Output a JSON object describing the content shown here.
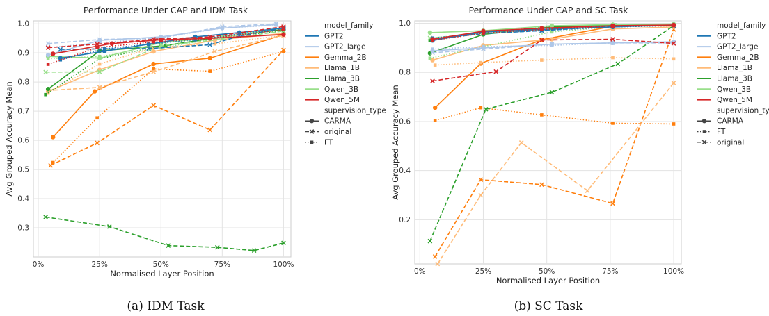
{
  "chart_data": [
    {
      "type": "line",
      "title": "Performance Under CAP and IDM Task",
      "xlabel": "Normalised Layer Position",
      "ylabel": "Avg Grouped Accuracy Mean",
      "xlim": [
        0,
        100
      ],
      "ylim": [
        0.2,
        1.0
      ],
      "x_ticks": [
        "0%",
        "25%",
        "50%",
        "75%",
        "100%"
      ],
      "y_ticks": [
        "0.3",
        "0.4",
        "0.5",
        "0.6",
        "0.7",
        "0.8",
        "0.9",
        "1.0"
      ],
      "caption": "(a)  IDM Task",
      "legend": {
        "hue_title": "model_family",
        "models": [
          "GPT2",
          "GPT2_large",
          "Gemma_2B",
          "Llama_1B",
          "Llama_3B",
          "Qwen_3B",
          "Qwen_5M"
        ],
        "style_title": "supervision_type",
        "styles": [
          "CARMA",
          "original",
          "FT"
        ]
      },
      "series": [
        {
          "model": "Gemma_2B",
          "style": "CARMA",
          "x": [
            6,
            23,
            47,
            70,
            100
          ],
          "y": [
            0.611,
            0.768,
            0.862,
            0.882,
            0.963
          ]
        },
        {
          "model": "Gemma_2B",
          "style": "original",
          "x": [
            5,
            24,
            47,
            70,
            100
          ],
          "y": [
            0.514,
            0.591,
            0.72,
            0.636,
            0.91
          ]
        },
        {
          "model": "Gemma_2B",
          "style": "FT",
          "x": [
            6,
            24,
            47,
            70,
            100
          ],
          "y": [
            0.524,
            0.677,
            0.845,
            0.837,
            0.905
          ]
        },
        {
          "model": "Llama_1B",
          "style": "CARMA",
          "x": [
            4,
            25,
            47,
            72,
            100
          ],
          "y": [
            0.768,
            0.842,
            0.905,
            0.944,
            0.967
          ]
        },
        {
          "model": "Llama_1B",
          "style": "original",
          "x": [
            4,
            25,
            47,
            72,
            100
          ],
          "y": [
            0.771,
            0.782,
            0.835,
            0.905,
            0.96
          ]
        },
        {
          "model": "Llama_1B",
          "style": "FT",
          "x": [
            4,
            25,
            47,
            72,
            100
          ],
          "y": [
            0.762,
            0.862,
            0.918,
            0.931,
            0.96
          ]
        },
        {
          "model": "Llama_3B",
          "style": "CARMA",
          "x": [
            4,
            25,
            52,
            75,
            100
          ],
          "y": [
            0.776,
            0.907,
            0.925,
            0.956,
            0.98
          ]
        },
        {
          "model": "Llama_3B",
          "style": "original",
          "x": [
            3,
            29,
            53,
            73,
            88,
            100
          ],
          "y": [
            0.337,
            0.304,
            0.239,
            0.233,
            0.222,
            0.248
          ]
        },
        {
          "model": "Llama_3B",
          "style": "FT",
          "x": [
            3,
            25,
            50,
            75,
            100
          ],
          "y": [
            0.757,
            0.88,
            0.924,
            0.954,
            0.975
          ]
        },
        {
          "model": "Qwen_3B",
          "style": "CARMA",
          "x": [
            4,
            25,
            50,
            75,
            100
          ],
          "y": [
            0.888,
            0.882,
            0.935,
            0.955,
            0.985
          ]
        },
        {
          "model": "Qwen_3B",
          "style": "original",
          "x": [
            3,
            25,
            50,
            75,
            100
          ],
          "y": [
            0.834,
            0.835,
            0.925,
            0.947,
            0.975
          ]
        },
        {
          "model": "Qwen_3B",
          "style": "FT",
          "x": [
            4,
            25,
            50,
            75,
            100
          ],
          "y": [
            0.88,
            0.888,
            0.918,
            0.952,
            0.985
          ]
        },
        {
          "model": "GPT2_large",
          "style": "CARMA",
          "x": [
            4,
            25,
            50,
            75,
            97
          ],
          "y": [
            0.893,
            0.943,
            0.955,
            0.985,
            0.997
          ]
        },
        {
          "model": "GPT2_large",
          "style": "original",
          "x": [
            4,
            25,
            50,
            75,
            97
          ],
          "y": [
            0.932,
            0.946,
            0.951,
            0.99,
            1.0
          ]
        },
        {
          "model": "GPT2_large",
          "style": "FT",
          "x": [
            4,
            25,
            50,
            75,
            97
          ],
          "y": [
            0.918,
            0.935,
            0.952,
            0.985,
            0.995
          ]
        },
        {
          "model": "GPT2",
          "style": "CARMA",
          "x": [
            9,
            27,
            45,
            64,
            82,
            100
          ],
          "y": [
            0.882,
            0.906,
            0.93,
            0.955,
            0.97,
            0.985
          ]
        },
        {
          "model": "GPT2",
          "style": "original",
          "x": [
            9,
            27,
            45,
            70,
            82,
            100
          ],
          "y": [
            0.912,
            0.914,
            0.915,
            0.928,
            0.958,
            0.985
          ]
        },
        {
          "model": "GPT2",
          "style": "FT",
          "x": [
            9,
            27,
            45,
            64,
            82,
            100
          ],
          "y": [
            0.876,
            0.914,
            0.93,
            0.945,
            0.965,
            0.985
          ]
        },
        {
          "model": "Qwen_5M",
          "style": "CARMA",
          "x": [
            6,
            30,
            50,
            70,
            100
          ],
          "y": [
            0.897,
            0.932,
            0.945,
            0.95,
            0.963
          ]
        },
        {
          "model": "Qwen_5M",
          "style": "original",
          "x": [
            4,
            24,
            47,
            70,
            100
          ],
          "y": [
            0.918,
            0.93,
            0.947,
            0.955,
            0.99
          ]
        },
        {
          "model": "Qwen_5M",
          "style": "FT",
          "x": [
            4,
            24,
            47,
            70,
            100
          ],
          "y": [
            0.861,
            0.918,
            0.938,
            0.95,
            0.98
          ]
        }
      ]
    },
    {
      "type": "line",
      "title": "Performance Under CAP and SC Task",
      "xlabel": "Normalised Layer Position",
      "ylabel": "Avg Grouped Accuracy Mean",
      "xlim": [
        0,
        100
      ],
      "ylim": [
        0.0,
        1.0
      ],
      "x_ticks": [
        "0%",
        "25%",
        "50%",
        "75%",
        "100%"
      ],
      "y_ticks": [
        "0.2",
        "0.4",
        "0.6",
        "0.8",
        "1.0"
      ],
      "caption": "(b)  SC Task",
      "legend": {
        "hue_title": "model_family",
        "models": [
          "GPT2",
          "GPT2_large",
          "Gemma_2B",
          "Llama_1B",
          "Llama_3B",
          "Qwen_3B",
          "Qwen_5M"
        ],
        "style_title": "supervision_type",
        "styles": [
          "CARMA",
          "FT",
          "original"
        ]
      },
      "series": [
        {
          "model": "Gemma_2B",
          "style": "CARMA",
          "x": [
            6,
            24,
            48,
            76,
            100
          ],
          "y": [
            0.656,
            0.836,
            0.933,
            0.988,
            0.993
          ]
        },
        {
          "model": "Gemma_2B",
          "style": "FT",
          "x": [
            6,
            24,
            48,
            76,
            100
          ],
          "y": [
            0.604,
            0.656,
            0.627,
            0.593,
            0.59
          ]
        },
        {
          "model": "Gemma_2B",
          "style": "original",
          "x": [
            6,
            24,
            48,
            76,
            100
          ],
          "y": [
            0.05,
            0.363,
            0.343,
            0.266,
            0.975
          ]
        },
        {
          "model": "Llama_1B",
          "style": "CARMA",
          "x": [
            5,
            25,
            52,
            76,
            100
          ],
          "y": [
            0.85,
            0.91,
            0.935,
            0.977,
            0.985
          ]
        },
        {
          "model": "Llama_1B",
          "style": "FT",
          "x": [
            6,
            24,
            48,
            76,
            100
          ],
          "y": [
            0.83,
            0.84,
            0.85,
            0.86,
            0.855
          ]
        },
        {
          "model": "Llama_1B",
          "style": "original",
          "x": [
            7,
            24,
            40,
            66,
            100
          ],
          "y": [
            0.02,
            0.3,
            0.514,
            0.318,
            0.757
          ]
        },
        {
          "model": "Llama_3B",
          "style": "CARMA",
          "x": [
            4,
            25,
            52,
            76,
            100
          ],
          "y": [
            0.878,
            0.955,
            0.985,
            0.993,
            0.993
          ]
        },
        {
          "model": "Llama_3B",
          "style": "FT",
          "x": [
            4,
            26,
            52,
            77,
            100
          ],
          "y": [
            0.931,
            0.965,
            0.985,
            0.993,
            0.993
          ]
        },
        {
          "model": "Llama_3B",
          "style": "original",
          "x": [
            4,
            26,
            52,
            78,
            100
          ],
          "y": [
            0.113,
            0.65,
            0.719,
            0.835,
            0.99
          ]
        },
        {
          "model": "Qwen_3B",
          "style": "CARMA",
          "x": [
            4,
            25,
            52,
            76,
            100
          ],
          "y": [
            0.962,
            0.97,
            0.99,
            0.995,
            0.997
          ]
        },
        {
          "model": "Qwen_3B",
          "style": "FT",
          "x": [
            4,
            25,
            52,
            76,
            100
          ],
          "y": [
            0.858,
            0.905,
            0.965,
            0.985,
            0.99
          ]
        },
        {
          "model": "Qwen_3B",
          "style": "original",
          "x": [
            4,
            25,
            52,
            76,
            100
          ],
          "y": [
            0.94,
            0.96,
            0.975,
            0.99,
            0.99
          ]
        },
        {
          "model": "GPT2_large",
          "style": "CARMA",
          "x": [
            5,
            25,
            52,
            76,
            100
          ],
          "y": [
            0.888,
            0.9,
            0.915,
            0.92,
            0.925
          ]
        },
        {
          "model": "GPT2_large",
          "style": "FT",
          "x": [
            5,
            25,
            52,
            76,
            100
          ],
          "y": [
            0.895,
            0.905,
            0.91,
            0.92,
            0.922
          ]
        },
        {
          "model": "GPT2_large",
          "style": "original",
          "x": [
            5,
            25,
            52,
            76,
            100
          ],
          "y": [
            0.88,
            0.895,
            0.915,
            0.92,
            0.92
          ]
        },
        {
          "model": "GPT2",
          "style": "CARMA",
          "x": [
            5,
            25,
            48,
            76,
            100
          ],
          "y": [
            0.93,
            0.965,
            0.975,
            0.985,
            0.993
          ]
        },
        {
          "model": "GPT2",
          "style": "FT",
          "x": [
            5,
            25,
            48,
            76,
            100
          ],
          "y": [
            0.94,
            0.96,
            0.97,
            0.985,
            0.99
          ]
        },
        {
          "model": "GPT2",
          "style": "original",
          "x": [
            5,
            25,
            48,
            76,
            100
          ],
          "y": [
            0.935,
            0.958,
            0.97,
            0.988,
            0.99
          ]
        },
        {
          "model": "Qwen_5M",
          "style": "CARMA",
          "x": [
            5,
            25,
            48,
            76,
            100
          ],
          "y": [
            0.935,
            0.968,
            0.98,
            0.99,
            0.993
          ]
        },
        {
          "model": "Qwen_5M",
          "style": "FT",
          "x": [
            5,
            25,
            48,
            76,
            100
          ],
          "y": [
            0.93,
            0.96,
            0.975,
            0.988,
            0.99
          ]
        },
        {
          "model": "Qwen_5M",
          "style": "original",
          "x": [
            5,
            30,
            48,
            76,
            100
          ],
          "y": [
            0.765,
            0.803,
            0.932,
            0.935,
            0.918
          ]
        }
      ]
    }
  ],
  "colors": {
    "GPT2": "#1f77b4",
    "GPT2_large": "#aec7e8",
    "Gemma_2B": "#ff7f0e",
    "Llama_1B": "#ffbb78",
    "Llama_3B": "#2ca02c",
    "Qwen_3B": "#98df8a",
    "Qwen_5M": "#d62728",
    "grid": "#e3e3e3",
    "spine": "#cccccc",
    "style_key": "#444444"
  }
}
